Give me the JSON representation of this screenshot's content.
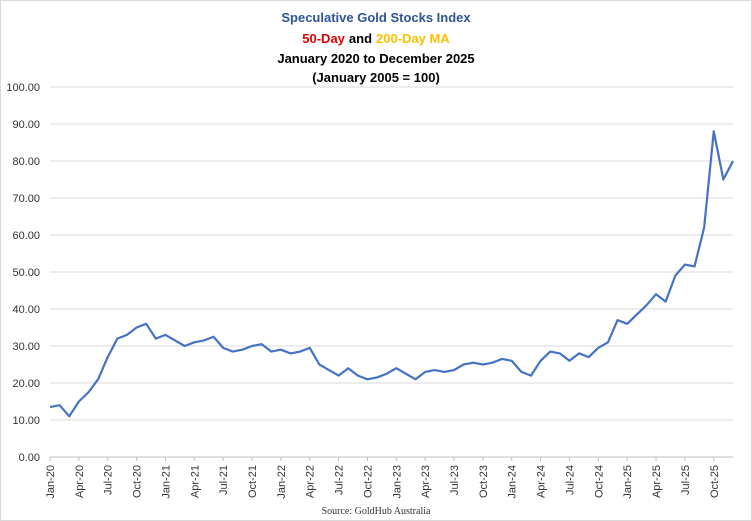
{
  "chart_data": {
    "type": "line",
    "title": "Speculative Gold Stocks Index",
    "subtitle_parts": [
      "50-Day",
      "and",
      "200-Day MA"
    ],
    "period": "January 2020 to December 2025",
    "base_note": "(January 2005 = 100)",
    "source": "Source: GoldHub Australia",
    "categories": [
      "Jan-20",
      null,
      null,
      "Apr-20",
      null,
      null,
      "Jul-20",
      null,
      null,
      "Oct-20",
      null,
      null,
      "Jan-21",
      null,
      null,
      "Apr-21",
      null,
      null,
      "Jul-21",
      null,
      null,
      "Oct-21",
      null,
      null,
      "Jan-22",
      null,
      null,
      "Apr-22",
      null,
      null,
      "Jul-22",
      null,
      null,
      "Oct-22",
      null,
      null,
      "Jan-23",
      null,
      null,
      "Apr-23",
      null,
      null,
      "Jul-23",
      null,
      null,
      "Oct-23",
      null,
      null,
      "Jan-24",
      null,
      null,
      "Apr-24",
      null,
      null,
      "Jul-24",
      null,
      null,
      "Oct-24",
      null,
      null,
      "Jan-25",
      null,
      null,
      "Apr-25",
      null,
      null,
      "Jul-25",
      null,
      null,
      "Oct-25",
      null,
      null
    ],
    "series": [
      {
        "color": "#4472c4",
        "values": [
          13.5,
          14,
          11,
          15,
          17.5,
          21,
          27,
          32,
          33,
          35,
          36,
          32,
          33,
          31.5,
          30,
          31,
          31.5,
          32.5,
          29.5,
          28.5,
          29,
          30,
          30.5,
          28.5,
          29,
          28,
          28.5,
          29.5,
          25,
          23.5,
          22,
          24,
          22,
          21,
          21.5,
          22.5,
          24,
          22.5,
          21,
          23,
          23.5,
          23,
          23.5,
          25,
          25.5,
          25,
          25.5,
          26.5,
          26,
          23,
          22,
          26,
          28.5,
          28,
          26,
          28,
          27,
          29.5,
          31,
          37,
          36,
          38.5,
          41,
          44,
          42,
          49,
          52,
          51.5,
          62,
          88,
          75,
          80
        ]
      }
    ],
    "ylim": [
      0,
      100
    ],
    "yticks": [
      {
        "value": 0,
        "label": "0.00"
      },
      {
        "value": 10,
        "label": "10.00"
      },
      {
        "value": 20,
        "label": "20.00"
      },
      {
        "value": 30,
        "label": "30.00"
      },
      {
        "value": 40,
        "label": "40.00"
      },
      {
        "value": 50,
        "label": "50.00"
      },
      {
        "value": 60,
        "label": "60.00"
      },
      {
        "value": 70,
        "label": "70.00"
      },
      {
        "value": 80,
        "label": "80.00"
      },
      {
        "value": 90,
        "label": "90.00"
      },
      {
        "value": 100,
        "label": "100.00"
      }
    ],
    "grid": true
  }
}
